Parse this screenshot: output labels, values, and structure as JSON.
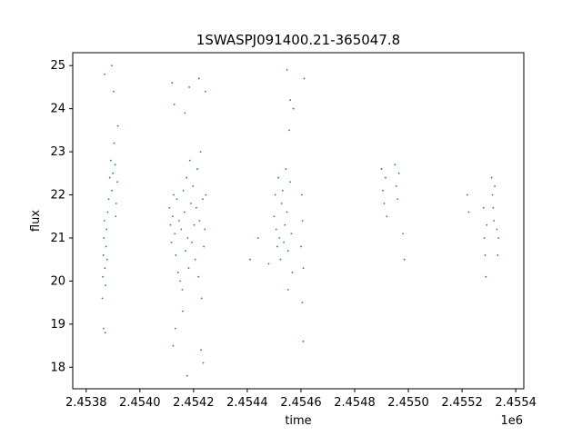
{
  "chart_data": {
    "type": "scatter",
    "title": "1SWASPJ091400.21-365047.8",
    "xlabel": "time",
    "ylabel": "flux",
    "x_offset_label": "1e6",
    "xlim": [
      2453750,
      2455430
    ],
    "ylim": [
      17.5,
      25.3
    ],
    "x_ticks": [
      2453800,
      2454000,
      2454200,
      2454400,
      2454600,
      2454800,
      2455000,
      2455200,
      2455400
    ],
    "x_tick_labels": [
      "2.4538",
      "2.4540",
      "2.4542",
      "2.4544",
      "2.4546",
      "2.4548",
      "2.4550",
      "2.4552",
      "2.4554"
    ],
    "y_ticks": [
      18,
      19,
      20,
      21,
      22,
      23,
      24,
      25
    ],
    "y_tick_labels": [
      "18",
      "19",
      "20",
      "21",
      "22",
      "23",
      "24",
      "25"
    ],
    "grid": false,
    "marker_color": "#1f77b4",
    "series": [
      {
        "values": [
          [
            2453860,
            19.6
          ],
          [
            2453862,
            20.1
          ],
          [
            2453864,
            20.6
          ],
          [
            2453866,
            21.0
          ],
          [
            2453868,
            21.4
          ],
          [
            2453870,
            20.3
          ],
          [
            2453872,
            19.9
          ],
          [
            2453874,
            20.8
          ],
          [
            2453876,
            21.2
          ],
          [
            2453878,
            20.5
          ],
          [
            2453865,
            18.9
          ],
          [
            2453869,
            24.8
          ],
          [
            2453871,
            18.8
          ],
          [
            2453880,
            21.6
          ],
          [
            2453884,
            21.9
          ],
          [
            2453888,
            22.4
          ],
          [
            2453892,
            22.8
          ],
          [
            2453896,
            22.1
          ],
          [
            2453900,
            22.5
          ],
          [
            2453904,
            23.2
          ],
          [
            2453908,
            22.7
          ],
          [
            2453912,
            21.8
          ],
          [
            2453916,
            22.3
          ],
          [
            2453918,
            23.6
          ],
          [
            2453910,
            21.5
          ],
          [
            2453902,
            24.4
          ],
          [
            2453895,
            25.0
          ],
          [
            2454110,
            21.7
          ],
          [
            2454114,
            21.3
          ],
          [
            2454118,
            20.9
          ],
          [
            2454122,
            21.5
          ],
          [
            2454126,
            22.0
          ],
          [
            2454130,
            21.1
          ],
          [
            2454134,
            20.6
          ],
          [
            2454138,
            21.9
          ],
          [
            2454142,
            20.2
          ],
          [
            2454146,
            21.4
          ],
          [
            2454120,
            24.6
          ],
          [
            2454124,
            18.5
          ],
          [
            2454128,
            24.1
          ],
          [
            2454132,
            18.9
          ],
          [
            2454150,
            20.0
          ],
          [
            2454154,
            21.2
          ],
          [
            2454158,
            19.8
          ],
          [
            2454162,
            22.1
          ],
          [
            2454166,
            21.6
          ],
          [
            2454170,
            20.7
          ],
          [
            2454174,
            22.4
          ],
          [
            2454178,
            21.0
          ],
          [
            2454182,
            20.3
          ],
          [
            2454186,
            22.8
          ],
          [
            2454160,
            19.3
          ],
          [
            2454168,
            23.9
          ],
          [
            2454176,
            17.8
          ],
          [
            2454184,
            24.5
          ],
          [
            2454190,
            21.8
          ],
          [
            2454194,
            20.9
          ],
          [
            2454198,
            22.2
          ],
          [
            2454202,
            21.3
          ],
          [
            2454206,
            20.5
          ],
          [
            2454210,
            21.7
          ],
          [
            2454214,
            22.6
          ],
          [
            2454218,
            20.1
          ],
          [
            2454222,
            21.4
          ],
          [
            2454226,
            23.0
          ],
          [
            2454230,
            19.6
          ],
          [
            2454234,
            21.9
          ],
          [
            2454238,
            20.8
          ],
          [
            2454242,
            21.2
          ],
          [
            2454246,
            22.0
          ],
          [
            2454220,
            24.7
          ],
          [
            2454228,
            18.4
          ],
          [
            2454236,
            18.1
          ],
          [
            2454244,
            24.4
          ],
          [
            2454410,
            20.5
          ],
          [
            2454440,
            21.0
          ],
          [
            2454480,
            20.4
          ],
          [
            2454500,
            21.5
          ],
          [
            2454504,
            22.0
          ],
          [
            2454508,
            21.2
          ],
          [
            2454512,
            20.8
          ],
          [
            2454516,
            22.4
          ],
          [
            2454520,
            21.0
          ],
          [
            2454524,
            20.5
          ],
          [
            2454528,
            21.8
          ],
          [
            2454532,
            22.1
          ],
          [
            2454536,
            20.9
          ],
          [
            2454540,
            21.3
          ],
          [
            2454544,
            22.6
          ],
          [
            2454548,
            21.6
          ],
          [
            2454552,
            20.7
          ],
          [
            2454556,
            23.5
          ],
          [
            2454560,
            22.3
          ],
          [
            2454564,
            21.1
          ],
          [
            2454568,
            20.2
          ],
          [
            2454572,
            24.0
          ],
          [
            2454548,
            24.9
          ],
          [
            2454552,
            19.8
          ],
          [
            2454560,
            24.2
          ],
          [
            2454600,
            20.8
          ],
          [
            2454603,
            22.0
          ],
          [
            2454606,
            21.4
          ],
          [
            2454609,
            20.3
          ],
          [
            2454612,
            24.7
          ],
          [
            2454605,
            19.5
          ],
          [
            2454608,
            18.6
          ],
          [
            2454900,
            22.6
          ],
          [
            2454905,
            22.1
          ],
          [
            2454910,
            21.8
          ],
          [
            2454915,
            22.4
          ],
          [
            2454920,
            21.5
          ],
          [
            2454950,
            22.7
          ],
          [
            2454955,
            22.2
          ],
          [
            2454960,
            21.9
          ],
          [
            2454965,
            22.5
          ],
          [
            2454980,
            21.1
          ],
          [
            2454985,
            20.5
          ],
          [
            2455220,
            22.0
          ],
          [
            2455225,
            21.6
          ],
          [
            2455280,
            21.7
          ],
          [
            2455283,
            21.0
          ],
          [
            2455286,
            20.6
          ],
          [
            2455289,
            20.1
          ],
          [
            2455292,
            21.3
          ],
          [
            2455310,
            22.4
          ],
          [
            2455313,
            22.0
          ],
          [
            2455316,
            21.7
          ],
          [
            2455319,
            21.4
          ],
          [
            2455322,
            22.2
          ],
          [
            2455330,
            21.2
          ],
          [
            2455333,
            20.6
          ],
          [
            2455336,
            21.0
          ]
        ]
      }
    ]
  }
}
